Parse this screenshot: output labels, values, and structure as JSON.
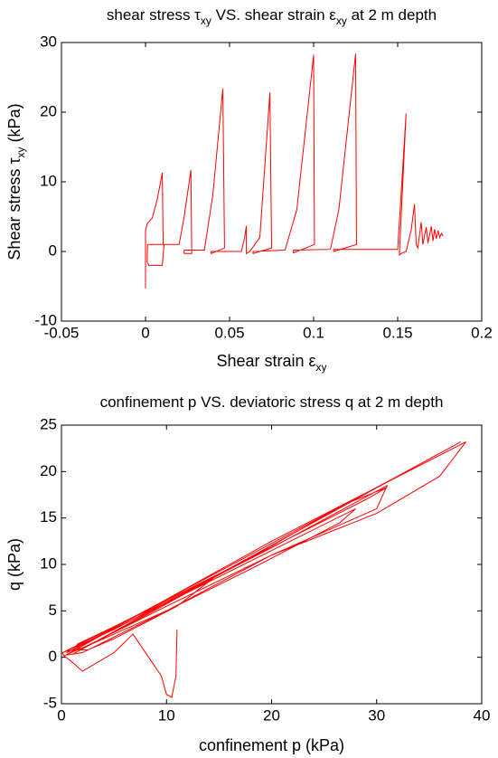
{
  "chart_data": [
    {
      "type": "line",
      "title": [
        "shear stress τ",
        "xy",
        " VS. shear strain ε",
        "xy",
        " at 2 m depth"
      ],
      "xlabel": [
        "Shear strain ε",
        "xy"
      ],
      "ylabel": [
        "Shear stress τ",
        "xy",
        " (kPa)"
      ],
      "xlim": [
        -0.05,
        0.2
      ],
      "xticks": [
        -0.05,
        0,
        0.05,
        0.1,
        0.15,
        0.2
      ],
      "ylim": [
        -10,
        30
      ],
      "yticks": [
        -10,
        0,
        10,
        20,
        30
      ],
      "color": "#ff0000",
      "x": [
        0,
        0,
        0.001,
        0.004,
        0.007,
        0.01,
        0.0105,
        0.0012,
        0.001,
        0.002,
        0.01,
        0.011,
        0.02,
        0.023,
        0.027,
        0.0275,
        0.023,
        0.023,
        0.035,
        0.04,
        0.046,
        0.047,
        0.039,
        0.039,
        0.057,
        0.059,
        0.06,
        0.06,
        0.062,
        0.068,
        0.074,
        0.075,
        0.064,
        0.064,
        0.083,
        0.09,
        0.1,
        0.1005,
        0.088,
        0.088,
        0.11,
        0.115,
        0.125,
        0.1255,
        0.112,
        0.112,
        0.15,
        0.152,
        0.155,
        0.151,
        0.152,
        0.155,
        0.158,
        0.16,
        0.161,
        0.162,
        0.164,
        0.165,
        0.167,
        0.168,
        0.17,
        0.171,
        0.172,
        0.173,
        0.174,
        0.175,
        0.176,
        0.177
      ],
      "values": [
        -5.3,
        3,
        4,
        4.8,
        7.5,
        11.3,
        1,
        1,
        -1.5,
        -2,
        -2,
        1,
        1,
        5,
        11.7,
        -0.3,
        -0.3,
        0.2,
        0.2,
        8,
        23.4,
        0.5,
        -0.3,
        0,
        0,
        2,
        3.7,
        -0.3,
        0,
        2,
        22.8,
        0.5,
        -0.3,
        0,
        0.2,
        6,
        28.2,
        1,
        -0.2,
        0.2,
        0.3,
        6,
        28.4,
        1,
        0,
        0.3,
        0.3,
        8,
        19.8,
        -0.5,
        -0.3,
        0,
        3,
        6.8,
        1,
        0.5,
        4.2,
        1,
        3.5,
        1.2,
        3.6,
        1.5,
        3.2,
        1.8,
        3,
        2,
        2.6,
        2.2
      ]
    },
    {
      "type": "line",
      "title": [
        "confinement p VS. deviatoric stress q at 2 m depth"
      ],
      "xlabel": [
        "confinement p (kPa)"
      ],
      "ylabel": [
        "q (kPa)"
      ],
      "xlim": [
        0,
        40
      ],
      "xticks": [
        0,
        10,
        20,
        30,
        40
      ],
      "ylim": [
        -5,
        25
      ],
      "yticks": [
        -5,
        0,
        5,
        10,
        15,
        20,
        25
      ],
      "color": "#ff0000",
      "x": [
        11,
        10.9,
        10.5,
        10,
        9.5,
        8,
        6.8,
        5,
        2,
        1,
        0.2,
        0.1,
        5,
        10,
        16,
        15,
        11,
        5,
        2.5,
        1.7,
        1.5,
        10,
        20,
        31,
        30,
        28,
        20,
        10,
        3,
        0.5,
        20,
        38.5,
        36,
        30,
        20,
        10,
        2,
        0.3,
        29,
        31,
        27,
        20,
        8,
        1,
        38,
        32,
        0.5,
        28,
        26.5,
        18,
        10,
        2,
        0.2
      ],
      "values": [
        3,
        -2,
        -4.3,
        -4,
        -2,
        0.5,
        2.5,
        0.5,
        -1.5,
        -0.5,
        0.2,
        0.5,
        3,
        6,
        9.5,
        9,
        5.5,
        2,
        0.8,
        0.8,
        1.4,
        6,
        11.8,
        18.5,
        16,
        15,
        11,
        5,
        1.5,
        0.3,
        12.5,
        23.2,
        19.5,
        15.5,
        11,
        5.5,
        1,
        0.6,
        17,
        18.3,
        16.5,
        12,
        4.5,
        0.3,
        23.2,
        19.5,
        0.5,
        16,
        14.5,
        9.5,
        5,
        0.5,
        0.2
      ]
    }
  ]
}
